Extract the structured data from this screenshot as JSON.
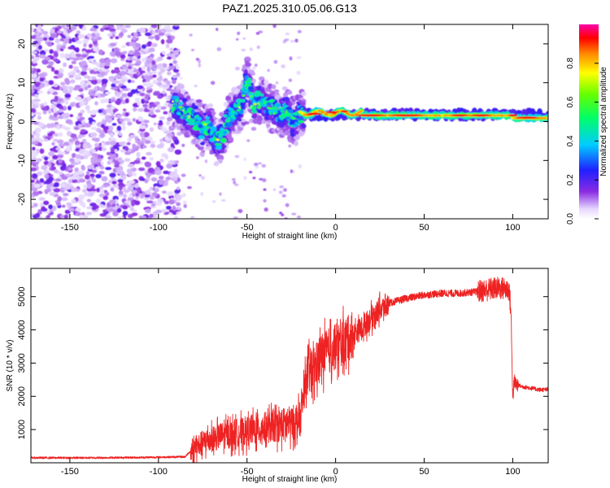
{
  "title": "PAZ1.2025.310.05.06.G13",
  "colors": {
    "snr_line": "#ee2222",
    "axis": "#000000",
    "background": "#ffffff"
  },
  "chart_data": [
    {
      "type": "heatmap",
      "name": "spectrogram",
      "xlabel": "Height of straight line (km)",
      "ylabel": "Frequency (Hz)",
      "xlim": [
        -172,
        120
      ],
      "ylim": [
        -25,
        25
      ],
      "xticks": [
        -150,
        -100,
        -50,
        0,
        50,
        100
      ],
      "yticks": [
        -20,
        -10,
        0,
        10,
        20
      ],
      "colorbar": {
        "label": "Normalized spectral amplitude",
        "range": [
          0,
          1
        ],
        "ticks": [
          0.0,
          0.2,
          0.4,
          0.6,
          0.8
        ],
        "tick_labels": [
          "0.0",
          "0.2",
          "0.4",
          "0.6",
          "0.8"
        ],
        "colormap": "white-purple-blue-cyan-green-yellow-red-magenta"
      },
      "features": [
        {
          "region": "scattered noise",
          "x": [
            -172,
            -88
          ],
          "y": [
            -25,
            25
          ],
          "amplitude": "0.05-0.25"
        },
        {
          "region": "turbulent tone",
          "x": [
            -90,
            -20
          ],
          "y": [
            -8,
            12
          ],
          "amplitude": "0.2-0.7"
        },
        {
          "region": "stable carrier tone",
          "x": [
            -20,
            120
          ],
          "y": [
            0.5,
            3
          ],
          "amplitude": "0.6-1.0"
        }
      ]
    },
    {
      "type": "line",
      "name": "snr",
      "xlabel": "Height of straight line (km)",
      "ylabel": "SNR (10 * v/v)",
      "xlim": [
        -172,
        120
      ],
      "ylim": [
        0,
        5850
      ],
      "xticks": [
        -150,
        -100,
        -50,
        0,
        50,
        100
      ],
      "yticks": [
        1000,
        2000,
        3000,
        4000,
        5000
      ],
      "series": [
        {
          "name": "SNR",
          "x": [
            -172,
            -140,
            -110,
            -85,
            -80,
            -75,
            -70,
            -65,
            -60,
            -55,
            -50,
            -45,
            -40,
            -35,
            -30,
            -25,
            -20,
            -17,
            -15,
            -12,
            -10,
            -8,
            -5,
            -2,
            0,
            3,
            5,
            8,
            10,
            15,
            20,
            25,
            30,
            40,
            50,
            60,
            70,
            80,
            85,
            90,
            95,
            98,
            99,
            100,
            101,
            102,
            105,
            110,
            115,
            120
          ],
          "values": [
            150,
            150,
            160,
            180,
            450,
            650,
            750,
            850,
            900,
            950,
            1000,
            1050,
            1100,
            1150,
            1200,
            1250,
            1350,
            2500,
            2800,
            2900,
            3100,
            3300,
            3400,
            3500,
            3550,
            3650,
            3750,
            3850,
            3900,
            4100,
            4400,
            4650,
            4800,
            4950,
            5050,
            5100,
            5100,
            5150,
            5200,
            5250,
            5250,
            5200,
            4500,
            2000,
            2450,
            2350,
            2300,
            2250,
            2200,
            2200
          ]
        }
      ]
    }
  ]
}
